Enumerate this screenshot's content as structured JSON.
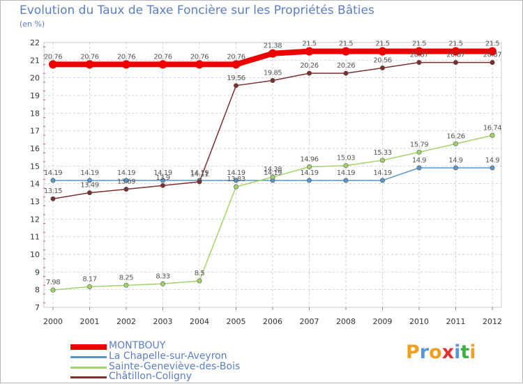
{
  "chart_data": {
    "type": "line",
    "title": "Evolution du Taux de Taxe Foncière sur les Propriétés Bâties",
    "ylabel": "(en %)",
    "x": [
      "2000",
      "2001",
      "2002",
      "2003",
      "2004",
      "2005",
      "2006",
      "2007",
      "2008",
      "2009",
      "2010",
      "2011",
      "2012"
    ],
    "ylim": [
      7,
      22
    ],
    "yticks": [
      "7",
      "8",
      "9",
      "10",
      "11",
      "12",
      "13",
      "14",
      "15",
      "16",
      "17",
      "18",
      "19",
      "20",
      "21",
      "22"
    ],
    "grid": true,
    "series": [
      {
        "name": "MONTBOUY",
        "color": "#ee0000",
        "values": [
          20.76,
          20.76,
          20.76,
          20.76,
          20.76,
          20.76,
          21.38,
          21.5,
          21.5,
          21.5,
          21.5,
          21.5,
          21.5
        ],
        "labels": [
          "20.76",
          "20.76",
          "20.76",
          "20.76",
          "20.76",
          "20.76",
          "21.38",
          "21.5",
          "21.5",
          "21.5",
          "21.5",
          "21.5",
          "21.5"
        ]
      },
      {
        "name": "La Chapelle-sur-Aveyron",
        "color": "#5a96c8",
        "values": [
          14.19,
          14.19,
          14.19,
          14.19,
          14.19,
          14.19,
          14.19,
          14.19,
          14.19,
          14.19,
          14.9,
          14.9,
          14.9
        ],
        "labels": [
          "14.19",
          "14.19",
          "14.19",
          "14.19",
          "14.19",
          "14.19",
          "14.19",
          "14.19",
          "14.19",
          "14.19",
          "14.9",
          "14.9",
          "14.9"
        ]
      },
      {
        "name": "Sainte-Geneviève-des-Bois",
        "color": "#9fd468",
        "values": [
          7.98,
          8.17,
          8.25,
          8.33,
          8.5,
          13.83,
          14.38,
          14.96,
          15.03,
          15.33,
          15.79,
          16.26,
          16.74
        ],
        "labels": [
          "7.98",
          "8.17",
          "8.25",
          "8.33",
          "8.5",
          "13.83",
          "14.38",
          "14.96",
          "15.03",
          "15.33",
          "15.79",
          "16.26",
          "16.74"
        ]
      },
      {
        "name": "Châtillon-Coligny",
        "color": "#7a2e2e",
        "values": [
          13.15,
          13.49,
          13.69,
          13.9,
          14.11,
          19.56,
          19.85,
          20.26,
          20.26,
          20.56,
          20.87,
          20.87,
          20.87
        ],
        "labels": [
          "13.15",
          "13.49",
          "13.69",
          "13.9",
          "14.11",
          "19.56",
          "19.85",
          "20.26",
          "20.26",
          "20.56",
          "20.87",
          "20.87",
          "20.87"
        ]
      }
    ],
    "legend_position": "bottom-left"
  },
  "branding": {
    "logo_letters": [
      "P",
      "r",
      "o",
      "x",
      "i",
      "t",
      "i"
    ],
    "logo_colors": [
      "#f0a020",
      "#5a96d8",
      "#f0a020",
      "#e03030",
      "#5a96d8",
      "#40b040",
      "#f0a020"
    ]
  }
}
